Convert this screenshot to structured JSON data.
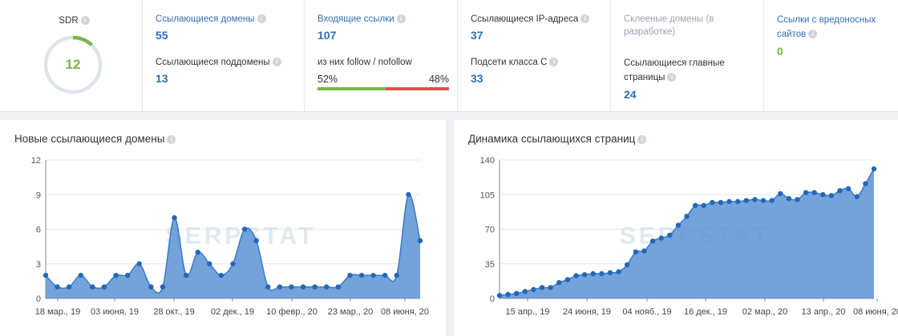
{
  "stats": {
    "sdr": {
      "label": "SDR",
      "value": "12",
      "gauge_fraction": 0.12
    },
    "ref_domains": {
      "label": "Ссылающиеся домены",
      "value": "55"
    },
    "ref_subdomains": {
      "label": "Ссылающиеся поддомены",
      "value": "13"
    },
    "backlinks": {
      "label": "Входящие ссылки",
      "value": "107"
    },
    "follow": {
      "label": "из них follow / nofollow",
      "follow_pct": "52%",
      "nofollow_pct": "48%",
      "follow_fraction": 0.52
    },
    "ref_ips": {
      "label": "Ссылающиеся IP-адреса",
      "value": "37"
    },
    "subnets": {
      "label": "Подсети класса С",
      "value": "33"
    },
    "glued": {
      "label": "Склееные домены (в разработке)"
    },
    "main_pages": {
      "label": "Ссылающиеся главные страницы",
      "value": "24"
    },
    "malicious": {
      "label": "Ссылки с вредоносных сайтов",
      "value": "0"
    }
  },
  "colors": {
    "accent": "#2f6fb5",
    "green": "#7ab648",
    "red": "#d9534f",
    "area": "#5b93d3",
    "line": "#3a7bc8"
  },
  "watermark": "SERPSTAT",
  "chart_data": [
    {
      "type": "area",
      "title": "Новые ссылающиеся домены",
      "ylim": [
        0,
        12
      ],
      "yticks": [
        0,
        3,
        6,
        9,
        12
      ],
      "xtick_labels": [
        "18 мар., 19",
        "03 июня, 19",
        "28 окт., 19",
        "02 дек., 19",
        "10 февр., 20",
        "23 мар., 20",
        "08 июня, 20"
      ],
      "values": [
        2,
        1,
        1,
        2,
        1,
        1,
        2,
        2,
        3,
        1,
        1,
        7,
        2,
        4,
        3,
        2,
        3,
        6,
        5,
        1,
        1,
        1,
        1,
        1,
        1,
        1,
        2,
        2,
        2,
        2,
        2,
        9,
        5
      ]
    },
    {
      "type": "area",
      "title": "Динамика ссылающихся страниц",
      "ylim": [
        0,
        140
      ],
      "yticks": [
        0,
        35,
        70,
        105,
        140
      ],
      "xtick_labels": [
        "15 апр., 19",
        "24 июня, 19",
        "04 нояб., 19",
        "16 дек., 19",
        "02 мар., 20",
        "13 апр., 20",
        "08 июня, 20"
      ],
      "values": [
        3,
        4,
        5,
        7,
        9,
        11,
        11,
        16,
        19,
        23,
        24,
        25,
        25,
        26,
        27,
        34,
        47,
        48,
        58,
        61,
        64,
        74,
        83,
        94,
        94,
        97,
        97,
        98,
        98,
        99,
        100,
        99,
        99,
        106,
        101,
        100,
        107,
        107,
        105,
        104,
        109,
        111,
        103,
        116,
        131
      ]
    }
  ]
}
